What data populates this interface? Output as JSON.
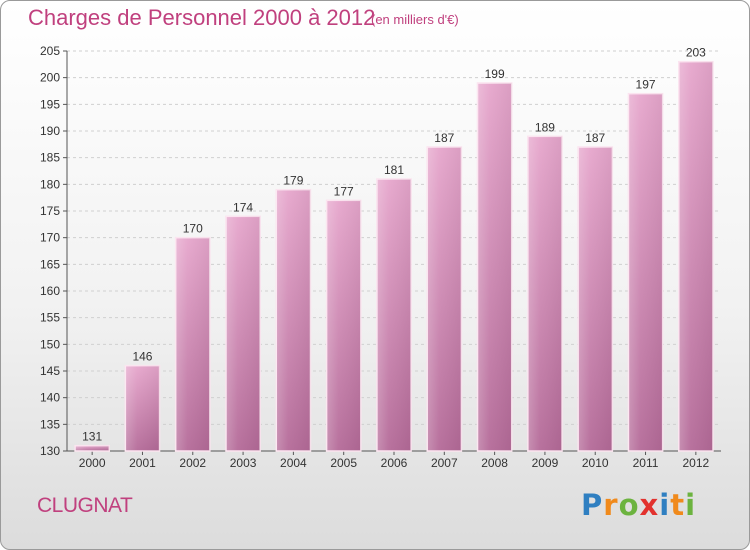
{
  "header": {
    "title": "Charges de Personnel 2000 à 2012",
    "subtitle": "(en milliers d'€)"
  },
  "footer": {
    "commune": "CLUGNAT",
    "logo": {
      "letters": [
        "P",
        "r",
        "o",
        "x",
        "i",
        "t",
        "i"
      ],
      "colors": [
        "#2f7fc1",
        "#f08a1c",
        "#6cb33f",
        "#e2322e",
        "#2f7fc1",
        "#f08a1c",
        "#6cb33f"
      ]
    }
  },
  "chart_data": {
    "type": "bar",
    "title": "Charges de Personnel 2000 à 2012",
    "subtitle": "(en milliers d'€)",
    "categories": [
      "2000",
      "2001",
      "2002",
      "2003",
      "2004",
      "2005",
      "2006",
      "2007",
      "2008",
      "2009",
      "2010",
      "2011",
      "2012"
    ],
    "values": [
      131,
      146,
      170,
      174,
      179,
      177,
      181,
      187,
      199,
      189,
      187,
      197,
      203
    ],
    "ylim": [
      130,
      205
    ],
    "yticks": [
      130,
      135,
      140,
      145,
      150,
      155,
      160,
      165,
      170,
      175,
      180,
      185,
      190,
      195,
      200,
      205
    ],
    "grid": true,
    "bar_color": "#d98bb6"
  }
}
